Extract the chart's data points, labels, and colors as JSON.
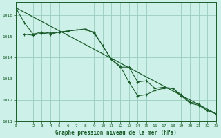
{
  "title": "Graphe pression niveau de la mer (hPa)",
  "bg_color": "#cdf0e8",
  "grid_color": "#99ccbb",
  "line_color": "#1a5c2a",
  "xlim": [
    0,
    23
  ],
  "ylim": [
    1011,
    1016.6
  ],
  "yticks": [
    1011,
    1012,
    1013,
    1014,
    1015,
    1016
  ],
  "xticks": [
    0,
    2,
    3,
    4,
    5,
    6,
    7,
    8,
    9,
    10,
    11,
    12,
    13,
    14,
    15,
    16,
    17,
    18,
    19,
    20,
    21,
    22,
    23
  ],
  "line1_x": [
    0,
    1,
    2,
    3,
    4,
    5,
    6,
    7,
    8,
    9,
    10,
    11,
    12,
    13,
    14,
    15,
    16,
    17,
    18,
    19,
    20,
    21,
    22,
    23
  ],
  "line1_y": [
    1016.35,
    1015.65,
    1015.1,
    1015.2,
    1015.15,
    1015.2,
    1015.25,
    1015.3,
    1015.35,
    1015.15,
    1014.55,
    1013.9,
    1013.6,
    1012.85,
    1012.2,
    1012.25,
    1012.45,
    1012.55,
    1012.55,
    1012.2,
    1011.85,
    1011.75,
    1011.5,
    1011.35
  ],
  "line2_x": [
    1,
    2,
    3,
    4,
    5,
    6,
    7,
    8,
    9,
    10,
    11,
    12,
    13,
    14,
    15,
    16,
    17,
    18,
    19,
    20,
    21,
    22,
    23
  ],
  "line2_y": [
    1015.1,
    1015.05,
    1015.15,
    1015.1,
    1015.2,
    1015.25,
    1015.3,
    1015.3,
    1015.2,
    1014.55,
    1013.9,
    1013.55,
    1013.55,
    1012.85,
    1012.9,
    1012.55,
    1012.6,
    1012.55,
    1012.25,
    1011.9,
    1011.8,
    1011.5,
    1011.35
  ],
  "line3_x": [
    0,
    23
  ],
  "line3_y": [
    1016.35,
    1011.35
  ]
}
